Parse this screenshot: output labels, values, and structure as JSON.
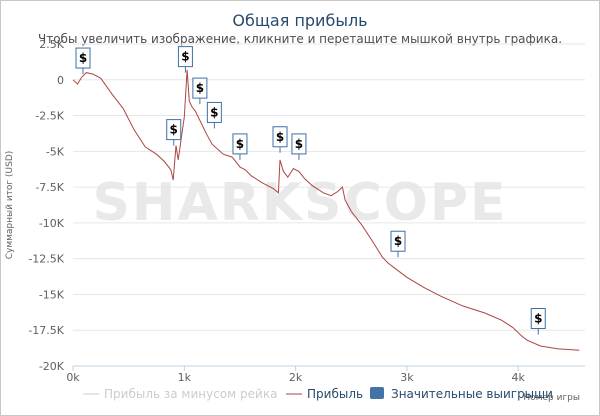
{
  "chart_data": {
    "type": "line",
    "title": "Общая прибыль",
    "subtitle": "Чтобы увеличить изображение, кликните и перетащите мышкой внутрь графика.",
    "xlabel": "Номер игры",
    "ylabel": "Суммарный итог (USD)",
    "xlim": [
      0,
      4600
    ],
    "ylim": [
      -20000,
      2500
    ],
    "x_ticks": [
      {
        "value": 0,
        "label": "0k"
      },
      {
        "value": 1000,
        "label": "1k"
      },
      {
        "value": 2000,
        "label": "2k"
      },
      {
        "value": 3000,
        "label": "3k"
      },
      {
        "value": 4000,
        "label": "4k"
      }
    ],
    "y_ticks": [
      {
        "value": 2500,
        "label": "2.5K"
      },
      {
        "value": 0,
        "label": "0"
      },
      {
        "value": -2500,
        "label": "-2.5K"
      },
      {
        "value": -5000,
        "label": "-5K"
      },
      {
        "value": -7500,
        "label": "-7.5K"
      },
      {
        "value": -10000,
        "label": "-10K"
      },
      {
        "value": -12500,
        "label": "-12.5K"
      },
      {
        "value": -15000,
        "label": "-15K"
      },
      {
        "value": -17500,
        "label": "-17.5K"
      },
      {
        "value": -20000,
        "label": "-20K"
      }
    ],
    "grid": true,
    "legend_position": "bottom",
    "watermark": "SHARKSCOPE",
    "series": [
      {
        "name": "Прибыль за минусом рейка",
        "color": "#cccccc",
        "visible": false,
        "points": []
      },
      {
        "name": "Прибыль",
        "color": "#aa4643",
        "visible": true,
        "points": [
          [
            0,
            0
          ],
          [
            40,
            -300
          ],
          [
            80,
            200
          ],
          [
            120,
            500
          ],
          [
            180,
            400
          ],
          [
            250,
            100
          ],
          [
            350,
            -1000
          ],
          [
            450,
            -2000
          ],
          [
            550,
            -3500
          ],
          [
            650,
            -4700
          ],
          [
            750,
            -5200
          ],
          [
            820,
            -5700
          ],
          [
            880,
            -6300
          ],
          [
            900,
            -7000
          ],
          [
            925,
            -4600
          ],
          [
            945,
            -5600
          ],
          [
            1000,
            -2600
          ],
          [
            1025,
            700
          ],
          [
            1045,
            -1500
          ],
          [
            1070,
            -1900
          ],
          [
            1100,
            -2200
          ],
          [
            1150,
            -3000
          ],
          [
            1200,
            -3800
          ],
          [
            1250,
            -4500
          ],
          [
            1350,
            -5200
          ],
          [
            1430,
            -5400
          ],
          [
            1500,
            -6100
          ],
          [
            1550,
            -6300
          ],
          [
            1600,
            -6700
          ],
          [
            1700,
            -7200
          ],
          [
            1800,
            -7600
          ],
          [
            1845,
            -7900
          ],
          [
            1860,
            -5600
          ],
          [
            1890,
            -6400
          ],
          [
            1930,
            -6800
          ],
          [
            1980,
            -6200
          ],
          [
            2030,
            -6400
          ],
          [
            2080,
            -6900
          ],
          [
            2150,
            -7400
          ],
          [
            2250,
            -7900
          ],
          [
            2320,
            -8100
          ],
          [
            2380,
            -7800
          ],
          [
            2420,
            -7500
          ],
          [
            2445,
            -8400
          ],
          [
            2500,
            -9200
          ],
          [
            2600,
            -10200
          ],
          [
            2700,
            -11400
          ],
          [
            2780,
            -12400
          ],
          [
            2830,
            -12800
          ],
          [
            2880,
            -13100
          ],
          [
            3000,
            -13800
          ],
          [
            3150,
            -14500
          ],
          [
            3300,
            -15100
          ],
          [
            3500,
            -15800
          ],
          [
            3700,
            -16300
          ],
          [
            3850,
            -16800
          ],
          [
            3950,
            -17300
          ],
          [
            4030,
            -17900
          ],
          [
            4080,
            -18200
          ],
          [
            4200,
            -18600
          ],
          [
            4350,
            -18800
          ],
          [
            4550,
            -18900
          ]
        ]
      },
      {
        "name": "Значительные выигрыши",
        "color": "#4572a7",
        "visible": true,
        "markers": [
          {
            "x": 90,
            "y": 400,
            "label": "$"
          },
          {
            "x": 905,
            "y": -4600,
            "label": "$"
          },
          {
            "x": 1010,
            "y": 500,
            "label": "$"
          },
          {
            "x": 1140,
            "y": -1700,
            "label": "$"
          },
          {
            "x": 1270,
            "y": -3400,
            "label": "$"
          },
          {
            "x": 1500,
            "y": -5600,
            "label": "$"
          },
          {
            "x": 1860,
            "y": -5100,
            "label": "$"
          },
          {
            "x": 2030,
            "y": -5600,
            "label": "$"
          },
          {
            "x": 2920,
            "y": -12400,
            "label": "$"
          },
          {
            "x": 4180,
            "y": -17800,
            "label": "$"
          }
        ]
      }
    ]
  }
}
